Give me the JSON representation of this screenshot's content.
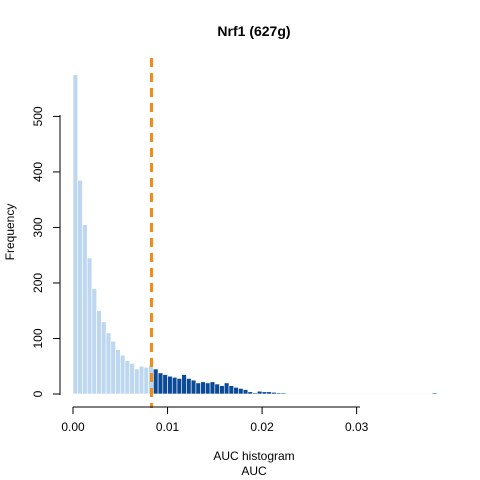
{
  "chart_data": {
    "type": "bar",
    "title": "Nrf1 (627g)",
    "xlabel": "AUC histogram",
    "xlabel2": "AUC",
    "ylabel": "Frequency",
    "xlim": [
      0.0,
      0.0385
    ],
    "ylim": [
      0,
      580
    ],
    "x_ticks": [
      "0.00",
      "0.01",
      "0.02",
      "0.03"
    ],
    "x_tick_values": [
      0.0,
      0.01,
      0.02,
      0.03
    ],
    "y_ticks": [
      "0",
      "100",
      "200",
      "300",
      "400",
      "500"
    ],
    "y_tick_values": [
      0,
      100,
      200,
      300,
      400,
      500
    ],
    "bin_width": 0.0005,
    "bin_start": 0.0,
    "values": [
      575,
      385,
      305,
      245,
      190,
      150,
      130,
      110,
      95,
      80,
      70,
      60,
      55,
      45,
      50,
      48,
      52,
      45,
      38,
      35,
      32,
      30,
      28,
      35,
      28,
      25,
      20,
      22,
      20,
      22,
      18,
      15,
      20,
      15,
      12,
      10,
      8,
      4,
      2,
      5,
      4,
      4,
      3,
      2,
      2,
      1,
      1,
      1,
      1,
      1,
      1,
      1,
      1,
      1,
      1,
      1,
      1,
      1,
      1,
      1,
      1,
      1,
      1,
      1,
      1,
      1,
      1,
      1,
      1,
      1,
      1,
      1,
      1,
      1,
      1,
      1,
      2
    ],
    "threshold": 0.0083,
    "colors": {
      "below": "#bdd7f0",
      "above": "#0b4a96",
      "threshold_line": "#f28c16"
    }
  }
}
